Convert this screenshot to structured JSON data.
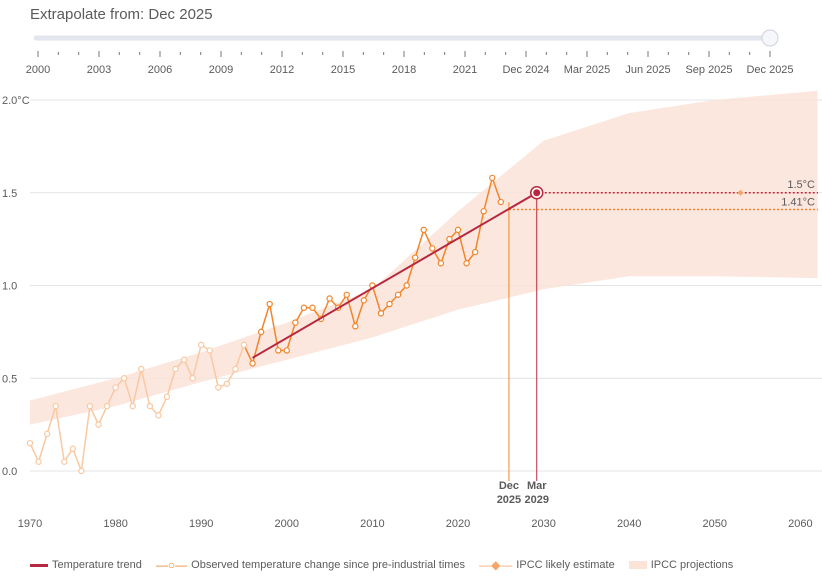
{
  "slider": {
    "label": "Extrapolate from: Dec 2025",
    "ticks": [
      "2000",
      "2003",
      "2006",
      "2009",
      "2012",
      "2015",
      "2018",
      "2021",
      "Dec 2024",
      "Mar 2025",
      "Jun 2025",
      "Sep 2025",
      "Dec 2025"
    ],
    "value_index": 12
  },
  "colors": {
    "trend": "#b5283f",
    "observed": "#f2852a",
    "observed_faded": "#f8c9a2",
    "projection": "#fbe3d8",
    "grid": "#e4e4e4"
  },
  "chart_data": {
    "type": "line",
    "xlim": [
      1970,
      2062
    ],
    "ylim": [
      -0.25,
      2.05
    ],
    "x_ticks": [
      "1970",
      "1980",
      "1990",
      "2000",
      "2010",
      "2020",
      "2030",
      "2040",
      "2050",
      "2060"
    ],
    "y_ticks": [
      "0.0",
      "0.5",
      "1.0",
      "1.5",
      "2.0°C"
    ],
    "y_tick_values": [
      0,
      0.5,
      1.0,
      1.5,
      2.0
    ],
    "grid": true,
    "legend_position": "bottom",
    "series": [
      {
        "name": "Observed temperature change since pre-industrial times",
        "x": [
          1970,
          1971,
          1972,
          1973,
          1974,
          1975,
          1976,
          1977,
          1978,
          1979,
          1980,
          1981,
          1982,
          1983,
          1984,
          1985,
          1986,
          1987,
          1988,
          1989,
          1990,
          1991,
          1992,
          1993,
          1994,
          1995,
          1996,
          1997,
          1998,
          1999,
          2000,
          2001,
          2002,
          2003,
          2004,
          2005,
          2006,
          2007,
          2008,
          2009,
          2010,
          2011,
          2012,
          2013,
          2014,
          2015,
          2016,
          2017,
          2018,
          2019,
          2020,
          2021,
          2022,
          2023,
          2024,
          2025
        ],
        "y": [
          0.15,
          0.05,
          0.2,
          0.35,
          0.05,
          0.12,
          0.0,
          0.35,
          0.25,
          0.35,
          0.45,
          0.5,
          0.35,
          0.55,
          0.35,
          0.3,
          0.4,
          0.55,
          0.6,
          0.5,
          0.68,
          0.65,
          0.45,
          0.47,
          0.55,
          0.68,
          0.58,
          0.75,
          0.9,
          0.65,
          0.65,
          0.8,
          0.88,
          0.88,
          0.82,
          0.93,
          0.88,
          0.95,
          0.78,
          0.92,
          1.0,
          0.85,
          0.9,
          0.95,
          1.0,
          1.15,
          1.3,
          1.2,
          1.12,
          1.25,
          1.3,
          1.12,
          1.18,
          1.4,
          1.58,
          1.45
        ]
      },
      {
        "name": "Temperature trend",
        "x": [
          1996,
          2029.2
        ],
        "y": [
          0.61,
          1.5
        ]
      },
      {
        "name": "IPCC likely estimate",
        "x": [
          2053
        ],
        "y": [
          1.5
        ]
      },
      {
        "name": "IPCC projections",
        "x": [
          1970,
          1980,
          1990,
          2000,
          2010,
          2020,
          2030,
          2040,
          2050,
          2062
        ],
        "upper": [
          0.38,
          0.5,
          0.64,
          0.8,
          0.98,
          1.4,
          1.78,
          1.93,
          2.0,
          2.05
        ],
        "lower": [
          0.25,
          0.35,
          0.48,
          0.6,
          0.72,
          0.87,
          0.98,
          1.05,
          1.05,
          1.04
        ]
      }
    ],
    "annotations": {
      "crossing": {
        "label_top": "Mar",
        "label_bottom": "2029",
        "x": 2029.2,
        "y": 1.5
      },
      "extrapolate_from": {
        "label_top": "Dec",
        "label_bottom": "2025",
        "x": 2025.95
      },
      "trend_value": {
        "label": "1.5°C",
        "y": 1.5
      },
      "observed_value": {
        "label": "1.41°C",
        "y": 1.41
      }
    }
  },
  "legend": [
    "Temperature trend",
    "Observed temperature change since pre-industrial times",
    "IPCC likely estimate",
    "IPCC projections"
  ]
}
